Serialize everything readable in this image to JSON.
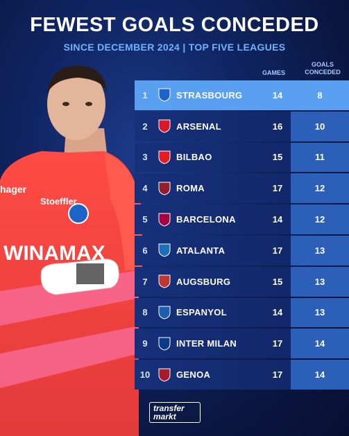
{
  "header": {
    "title": "FEWEST GOALS CONCEDED",
    "subtitle": "SINCE DECEMBER 2024 | TOP FIVE LEAGUES"
  },
  "columns": {
    "games": "GAMES",
    "goals_conceded_line1": "GOALS",
    "goals_conceded_line2": "CONCEDED"
  },
  "rows": [
    {
      "rank": "1",
      "team": "STRASBOURG",
      "games": "14",
      "conceded": "8",
      "crest": "strasbourg-crest",
      "color": "#1e63c8"
    },
    {
      "rank": "2",
      "team": "ARSENAL",
      "games": "16",
      "conceded": "10",
      "crest": "arsenal-crest",
      "color": "#d8182b"
    },
    {
      "rank": "3",
      "team": "BILBAO",
      "games": "15",
      "conceded": "11",
      "crest": "bilbao-crest",
      "color": "#e31b23"
    },
    {
      "rank": "4",
      "team": "ROMA",
      "games": "17",
      "conceded": "12",
      "crest": "roma-crest",
      "color": "#8e1f2f"
    },
    {
      "rank": "5",
      "team": "BARCELONA",
      "games": "14",
      "conceded": "12",
      "crest": "barcelona-crest",
      "color": "#a50044"
    },
    {
      "rank": "6",
      "team": "ATALANTA",
      "games": "17",
      "conceded": "13",
      "crest": "atalanta-crest",
      "color": "#1e71b8"
    },
    {
      "rank": "7",
      "team": "AUGSBURG",
      "games": "15",
      "conceded": "13",
      "crest": "augsburg-crest",
      "color": "#ba3733"
    },
    {
      "rank": "8",
      "team": "ESPANYOL",
      "games": "14",
      "conceded": "13",
      "crest": "espanyol-crest",
      "color": "#1b5fae"
    },
    {
      "rank": "9",
      "team": "INTER MILAN",
      "games": "17",
      "conceded": "14",
      "crest": "inter-crest",
      "color": "#0b3a8a"
    },
    {
      "rank": "10",
      "team": "GENOA",
      "games": "17",
      "conceded": "14",
      "crest": "genoa-crest",
      "color": "#a51d2d"
    }
  ],
  "player": {
    "sponsor": "WINAMAX",
    "sleeve_sponsor": "hager",
    "chest_logo": "Stoeffler"
  },
  "logo": {
    "line1": "transfer",
    "line2": "markt"
  }
}
